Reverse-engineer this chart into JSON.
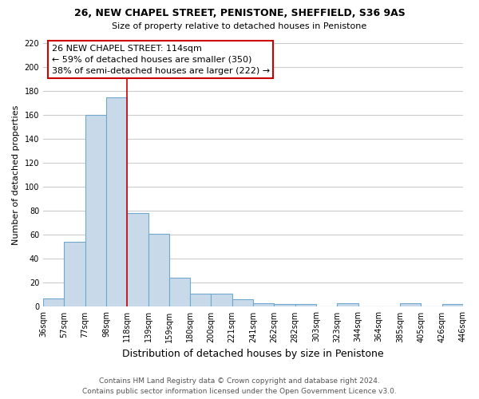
{
  "title": "26, NEW CHAPEL STREET, PENISTONE, SHEFFIELD, S36 9AS",
  "subtitle": "Size of property relative to detached houses in Penistone",
  "xlabel": "Distribution of detached houses by size in Penistone",
  "ylabel": "Number of detached properties",
  "bar_values": [
    7,
    54,
    160,
    175,
    78,
    61,
    24,
    11,
    11,
    6,
    3,
    2,
    2,
    0,
    3,
    0,
    0,
    3,
    0,
    2
  ],
  "tick_labels": [
    "36sqm",
    "57sqm",
    "77sqm",
    "98sqm",
    "118sqm",
    "139sqm",
    "159sqm",
    "180sqm",
    "200sqm",
    "221sqm",
    "241sqm",
    "262sqm",
    "282sqm",
    "303sqm",
    "323sqm",
    "344sqm",
    "364sqm",
    "385sqm",
    "405sqm",
    "426sqm",
    "446sqm"
  ],
  "bar_color_fill": "#c8daea",
  "bar_color_edge": "#6fa8cc",
  "vline_color": "#cc0000",
  "vline_x": 4,
  "annotation_text_line1": "26 NEW CHAPEL STREET: 114sqm",
  "annotation_text_line2": "← 59% of detached houses are smaller (350)",
  "annotation_text_line3": "38% of semi-detached houses are larger (222) →",
  "annotation_box_edgecolor": "#cc0000",
  "annotation_box_facecolor": "#ffffff",
  "ylim": [
    0,
    220
  ],
  "yticks": [
    0,
    20,
    40,
    60,
    80,
    100,
    120,
    140,
    160,
    180,
    200,
    220
  ],
  "footer_line1": "Contains HM Land Registry data © Crown copyright and database right 2024.",
  "footer_line2": "Contains public sector information licensed under the Open Government Licence v3.0.",
  "background_color": "#ffffff",
  "grid_color": "#cccccc",
  "title_fontsize": 9,
  "subtitle_fontsize": 8,
  "xlabel_fontsize": 9,
  "ylabel_fontsize": 8,
  "tick_fontsize": 7,
  "annotation_fontsize": 8,
  "footer_fontsize": 6.5
}
